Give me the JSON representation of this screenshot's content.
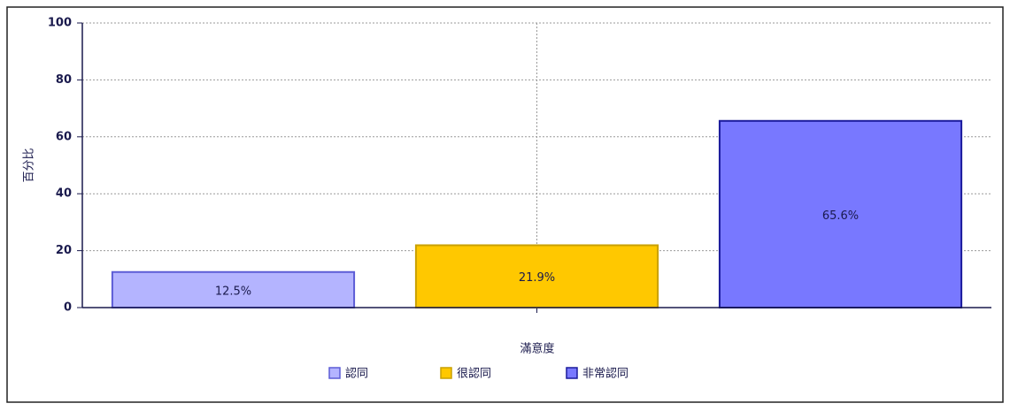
{
  "chart_data": {
    "type": "bar",
    "categories": [
      null
    ],
    "xlabel": "滿意度",
    "ylabel": "百分比",
    "series": [
      {
        "name": "認同",
        "color": "#b4b4ff",
        "edge": "#5c5cd6",
        "values": [
          12.5
        ],
        "value_labels": [
          "12.5%"
        ]
      },
      {
        "name": "很認同",
        "color": "#ffc800",
        "edge": "#c9a000",
        "values": [
          21.9
        ],
        "value_labels": [
          "21.9%"
        ]
      },
      {
        "name": "非常認同",
        "color": "#7878ff",
        "edge": "#1a1a9c",
        "values": [
          65.6
        ],
        "value_labels": [
          "65.6%"
        ]
      }
    ],
    "ylim": [
      0,
      100
    ],
    "yticks": [
      0,
      20,
      40,
      60,
      80,
      100
    ],
    "grid": true,
    "legend": "bottom"
  }
}
